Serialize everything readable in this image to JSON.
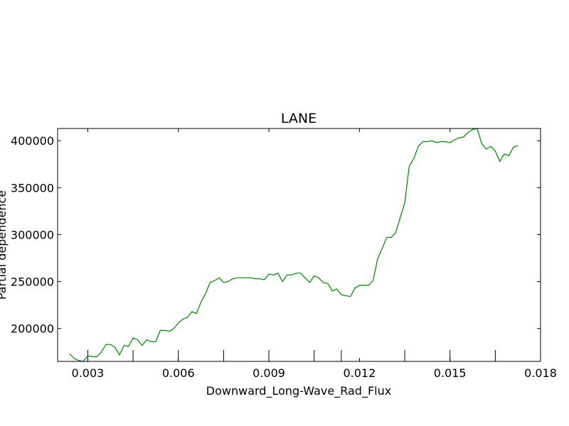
{
  "chart_data": {
    "type": "line",
    "title": "LANE",
    "xlabel": "Downward_Long-Wave_Rad_Flux",
    "ylabel": "Partial dependence",
    "xlim": [
      0.002,
      0.018
    ],
    "ylim": [
      165000,
      413000
    ],
    "x_ticks": [
      0.003,
      0.006,
      0.009,
      0.012,
      0.015,
      0.018
    ],
    "x_tick_labels": [
      "0.003",
      "0.006",
      "0.009",
      "0.012",
      "0.015",
      "0.018"
    ],
    "y_ticks": [
      200000,
      250000,
      300000,
      350000,
      400000
    ],
    "y_tick_labels": [
      "200000",
      "250000",
      "300000",
      "350000",
      "400000"
    ],
    "rug_x": [
      0.003,
      0.0045,
      0.006,
      0.0075,
      0.009,
      0.0105,
      0.0114,
      0.0135,
      0.015,
      0.0165
    ],
    "grid": false,
    "series": [
      {
        "name": "",
        "color": "#008000",
        "x": [
          0.0024,
          0.00255,
          0.0027,
          0.00285,
          0.003,
          0.00315,
          0.0033,
          0.00345,
          0.0036,
          0.00375,
          0.0039,
          0.00405,
          0.0042,
          0.00435,
          0.0045,
          0.00465,
          0.0048,
          0.00495,
          0.0051,
          0.00525,
          0.0054,
          0.00555,
          0.0057,
          0.00585,
          0.006,
          0.00615,
          0.0063,
          0.00645,
          0.0066,
          0.00675,
          0.0069,
          0.00705,
          0.0072,
          0.00735,
          0.0075,
          0.00765,
          0.0078,
          0.00795,
          0.0081,
          0.00825,
          0.0084,
          0.00855,
          0.0087,
          0.00885,
          0.009,
          0.00915,
          0.0093,
          0.00945,
          0.0096,
          0.00975,
          0.0099,
          0.01005,
          0.0102,
          0.01035,
          0.0105,
          0.01065,
          0.0108,
          0.01095,
          0.0111,
          0.01125,
          0.0114,
          0.01155,
          0.0117,
          0.01185,
          0.012,
          0.01215,
          0.0123,
          0.01245,
          0.0126,
          0.01275,
          0.0129,
          0.01305,
          0.0132,
          0.01335,
          0.0135,
          0.01365,
          0.0138,
          0.01395,
          0.0141,
          0.01425,
          0.0144,
          0.01455,
          0.0147,
          0.01485,
          0.015,
          0.01515,
          0.0153,
          0.01545,
          0.0156,
          0.01575,
          0.0159,
          0.01605,
          0.0162,
          0.01635,
          0.0165,
          0.01665,
          0.0168,
          0.01695,
          0.0171,
          0.01725
        ],
        "values": [
          173000,
          168000,
          166000,
          165000,
          171000,
          170000,
          170000,
          175000,
          183000,
          183000,
          180000,
          172000,
          182000,
          181000,
          190000,
          188000,
          182000,
          188000,
          186000,
          186000,
          198000,
          198000,
          197000,
          200000,
          206000,
          210000,
          212000,
          218000,
          216000,
          228000,
          237000,
          249000,
          251000,
          254000,
          249000,
          250000,
          253000,
          254000,
          254000,
          254000,
          254000,
          253000,
          253000,
          252000,
          258000,
          257000,
          259000,
          250000,
          257000,
          257000,
          259000,
          259000,
          254000,
          249000,
          256000,
          254000,
          249000,
          248000,
          240000,
          242000,
          236000,
          235000,
          234000,
          243000,
          246000,
          246000,
          246000,
          251000,
          274000,
          285000,
          297000,
          297000,
          302000,
          318000,
          334000,
          373000,
          381000,
          394000,
          399000,
          399000,
          400000,
          398000,
          399000,
          399000,
          398000,
          401000,
          403000,
          404000,
          409000,
          412000,
          413000,
          397000,
          391000,
          394000,
          389000,
          378000,
          386000,
          384000,
          393000,
          395000
        ]
      }
    ]
  }
}
